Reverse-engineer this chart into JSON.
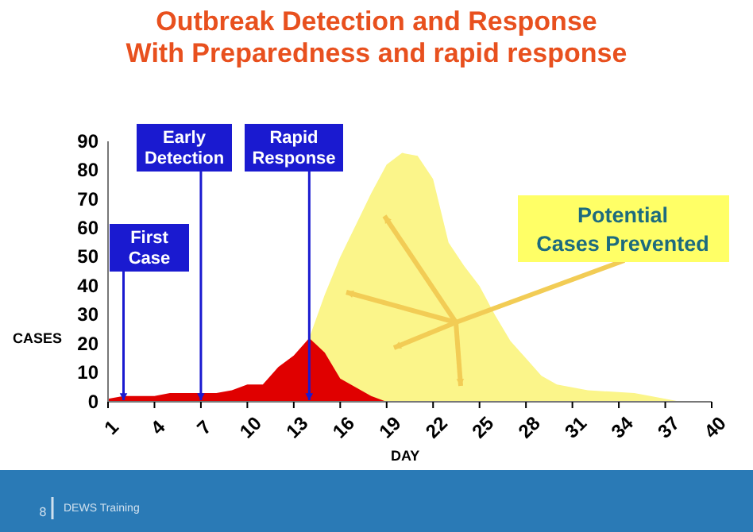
{
  "chart_data": {
    "type": "area",
    "title": "Outbreak Detection and Response\nWith Preparedness and rapid response",
    "xlabel": "DAY",
    "ylabel": "CASES",
    "xlim": [
      1,
      40
    ],
    "xticks": [
      1,
      4,
      7,
      10,
      13,
      16,
      19,
      22,
      25,
      28,
      31,
      34,
      37,
      40
    ],
    "ylim": [
      0,
      90
    ],
    "yticks": [
      0,
      10,
      20,
      30,
      40,
      50,
      60,
      70,
      80,
      90
    ],
    "grid": false,
    "legend": false,
    "series": [
      {
        "color": "#fbf58a",
        "x": [
          14,
          15,
          16,
          17,
          18,
          19,
          20,
          21,
          22,
          23,
          24,
          25,
          26,
          27,
          28,
          29,
          30,
          32,
          35,
          37,
          38
        ],
        "values": [
          22,
          37,
          50,
          61,
          72,
          82,
          86,
          85,
          77,
          55,
          47,
          40,
          30,
          21,
          15,
          9,
          6,
          4,
          3,
          1,
          0
        ]
      },
      {
        "color": "#e00000",
        "x": [
          1,
          2,
          3,
          4,
          5,
          6,
          7,
          8,
          9,
          10,
          11,
          12,
          13,
          14,
          15,
          16,
          17,
          18,
          19
        ],
        "values": [
          1,
          2,
          2,
          2,
          3,
          3,
          3,
          3,
          4,
          6,
          6,
          12,
          16,
          22,
          17,
          8,
          5,
          2,
          0
        ]
      }
    ],
    "annotations": [
      {
        "text": "First Case",
        "x": 2,
        "y": 0
      },
      {
        "text": "Early Detection",
        "x": 7,
        "y": 0
      },
      {
        "text": "Rapid Response",
        "x": 14,
        "y": 0
      },
      "Potential Cases Prevented",
      "8",
      "DEWS Training"
    ]
  }
}
